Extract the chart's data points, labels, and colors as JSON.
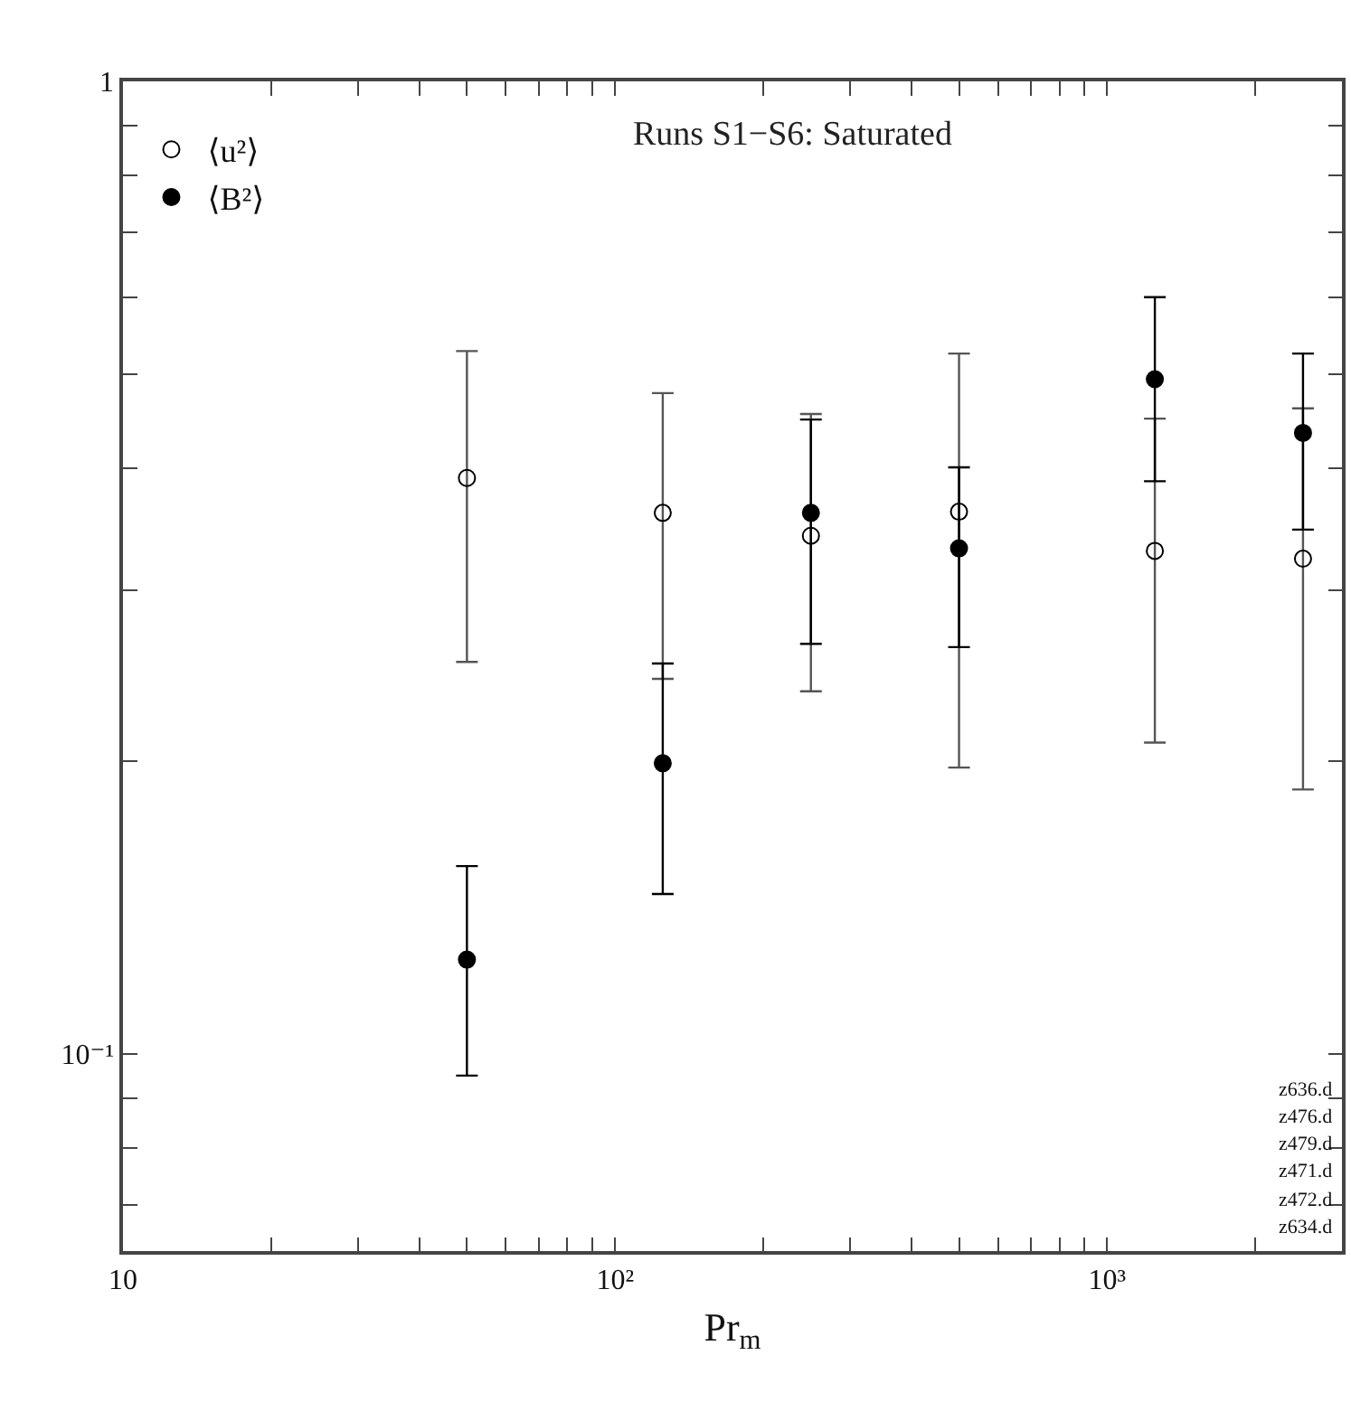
{
  "chart_data": {
    "type": "scatter",
    "title": "Runs S1−S6: Saturated",
    "xlabel": "Pr$_{m}$",
    "x": [
      50,
      125,
      250,
      500,
      1250,
      2500
    ],
    "series": [
      {
        "name": "⟨u²⟩",
        "color": "#000000",
        "values": [
          0.391,
          0.36,
          0.341,
          0.361,
          0.329,
          0.323
        ],
        "errors": [
          [
            0.253,
            0.528
          ],
          [
            0.243,
            0.478
          ],
          [
            0.236,
            0.455
          ],
          [
            0.197,
            0.525
          ],
          [
            0.209,
            0.45
          ],
          [
            0.187,
            0.461
          ]
        ]
      },
      {
        "name": "⟨B²⟩",
        "color": "#000000",
        "values": [
          0.125,
          0.199,
          0.36,
          0.331,
          0.494,
          0.435
        ],
        "errors": [
          [
            0.095,
            0.156
          ],
          [
            0.146,
            0.252
          ],
          [
            0.264,
            0.449
          ],
          [
            0.262,
            0.401
          ],
          [
            0.388,
            0.6
          ],
          [
            0.346,
            0.525
          ]
        ]
      }
    ],
    "log": "xy",
    "xlim": [
      10,
      3000
    ],
    "ylim": [
      0.0627,
      1
    ],
    "xticks": [
      10,
      {
        "value": 20,
        "label": null
      },
      {
        "value": 30,
        "label": null
      },
      {
        "value": 40,
        "label": null
      },
      {
        "value": 50,
        "label": null
      },
      {
        "value": 60,
        "label": null
      },
      {
        "value": 70,
        "label": null
      },
      {
        "value": 80,
        "label": null
      },
      {
        "value": 90,
        "label": null
      },
      {
        "value": 100,
        "label": "10²"
      },
      {
        "value": 200,
        "label": null
      },
      {
        "value": 300,
        "label": null
      },
      {
        "value": 400,
        "label": null
      },
      {
        "value": 500,
        "label": null
      },
      {
        "value": 600,
        "label": null
      },
      {
        "value": 700,
        "label": null
      },
      {
        "value": 800,
        "label": null
      },
      {
        "value": 900,
        "label": null
      },
      {
        "value": 1000,
        "label": "10³"
      },
      {
        "value": 2000,
        "label": null
      }
    ],
    "yticks": [
      {
        "value": 0.07,
        "label": null
      },
      {
        "value": 0.08,
        "label": null
      },
      {
        "value": 0.09,
        "label": null
      },
      {
        "value": 0.1,
        "label": "10⁻¹"
      },
      {
        "value": 0.2,
        "label": null
      },
      {
        "value": 0.3,
        "label": null
      },
      {
        "value": 0.4,
        "label": null
      },
      {
        "value": 0.5,
        "label": null
      },
      {
        "value": 0.6,
        "label": null
      },
      {
        "value": 0.7,
        "label": null
      },
      {
        "value": 0.8,
        "label": null
      },
      {
        "value": 0.9,
        "label": null
      },
      1
    ],
    "marker": "circle",
    "legend": "top left",
    "grid": false,
    "annotations": [
      "z636.d",
      "z476.d",
      "z479.d",
      "z471.d",
      "z472.d",
      "z634.d"
    ]
  }
}
